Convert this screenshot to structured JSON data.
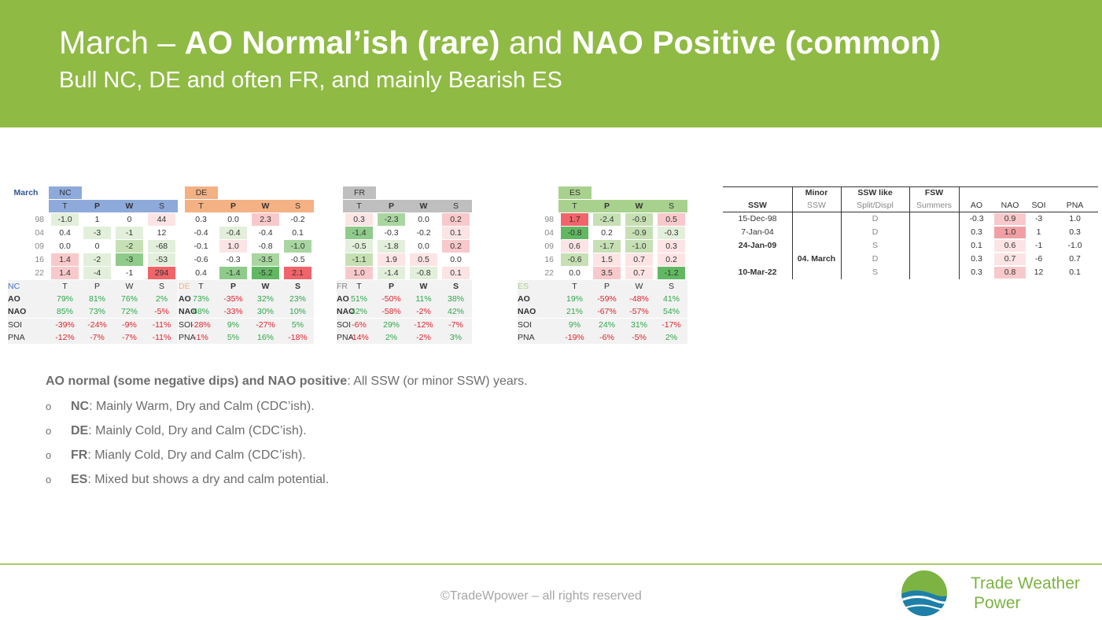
{
  "header": {
    "title_a": "March – ",
    "title_b": "AO Normal’ish (rare)",
    "title_c": " and ",
    "title_d": "NAO Positive (common)",
    "subtitle": "Bull NC, DE and often FR, and mainly Bearish ES"
  },
  "month_label": "March",
  "regions": [
    {
      "name": "NC",
      "color": "#8eaadb",
      "headers": [
        "T",
        "P",
        "W",
        "S"
      ],
      "years": [
        "98",
        "04",
        "09",
        "16",
        "22"
      ],
      "rows": [
        [
          "-1.0",
          "1",
          "0",
          "44"
        ],
        [
          "0.4",
          "-3",
          "-1",
          "12"
        ],
        [
          "0.0",
          "0",
          "-2",
          "-68"
        ],
        [
          "1.4",
          "-2",
          "-3",
          "-53"
        ],
        [
          "1.4",
          "-4",
          "-1",
          "294"
        ]
      ],
      "bg": [
        [
          "#e2efda",
          "#ffffff",
          "#ffffff",
          "#fce4e4"
        ],
        [
          "#ffffff",
          "#e2efda",
          "#e2efda",
          "#ffffff"
        ],
        [
          "#ffffff",
          "#ffffff",
          "#c6e0b4",
          "#e2efda"
        ],
        [
          "#f8c9cb",
          "#e2efda",
          "#8fcb8a",
          "#e2efda"
        ],
        [
          "#f8c9cb",
          "#e2efda",
          "#ffffff",
          "#f0646a"
        ]
      ],
      "corr_label": "NC",
      "corr_headers": [
        "T",
        "P",
        "W",
        "S"
      ],
      "corr": [
        {
          "label": "AO",
          "values": [
            "79%",
            "81%",
            "76%",
            "2%"
          ]
        },
        {
          "label": "NAO",
          "values": [
            "85%",
            "73%",
            "72%",
            "-5%"
          ]
        },
        {
          "label": "SOI",
          "values": [
            "-39%",
            "-24%",
            "-9%",
            "-11%"
          ]
        },
        {
          "label": "PNA",
          "values": [
            "-12%",
            "-7%",
            "-7%",
            "-11%"
          ]
        }
      ]
    },
    {
      "name": "DE",
      "color": "#f4b183",
      "headers": [
        "T",
        "P",
        "W",
        "S"
      ],
      "years": [
        "",
        "",
        "",
        "",
        ""
      ],
      "rows": [
        [
          "0.3",
          "0.0",
          "2.3",
          "-0.2"
        ],
        [
          "-0.4",
          "-0.4",
          "-0.4",
          "0.1"
        ],
        [
          "-0.1",
          "1.0",
          "-0.8",
          "-1.0"
        ],
        [
          "-0.6",
          "-0.3",
          "-3.5",
          "-0.5"
        ],
        [
          "0.4",
          "-1.4",
          "-5.2",
          "2.1"
        ]
      ],
      "bg": [
        [
          "#ffffff",
          "#ffffff",
          "#f8c9cb",
          "#ffffff"
        ],
        [
          "#ffffff",
          "#e2efda",
          "#ffffff",
          "#ffffff"
        ],
        [
          "#ffffff",
          "#fce4e4",
          "#ffffff",
          "#a9d6a0"
        ],
        [
          "#ffffff",
          "#ffffff",
          "#a9d6a0",
          "#ffffff"
        ],
        [
          "#ffffff",
          "#8fcb8a",
          "#62b862",
          "#f0646a"
        ]
      ],
      "corr_label": "DE",
      "corr_headers": [
        "T",
        "P",
        "W",
        "S"
      ],
      "corr": [
        {
          "label": "AO",
          "values": [
            "73%",
            "-35%",
            "32%",
            "23%"
          ]
        },
        {
          "label": "NAO",
          "values": [
            "68%",
            "-33%",
            "30%",
            "10%"
          ]
        },
        {
          "label": "SOI",
          "values": [
            "-28%",
            "9%",
            "-27%",
            "5%"
          ]
        },
        {
          "label": "PNA",
          "values": [
            "-1%",
            "5%",
            "16%",
            "-18%"
          ]
        }
      ]
    },
    {
      "name": "FR",
      "color": "#bfbfbf",
      "headers": [
        "T",
        "P",
        "W",
        "S"
      ],
      "years": [
        "",
        "",
        "",
        "",
        ""
      ],
      "rows": [
        [
          "0.3",
          "-2.3",
          "0.0",
          "0.2"
        ],
        [
          "-1.4",
          "-0.3",
          "-0.2",
          "0.1"
        ],
        [
          "-0.5",
          "-1.8",
          "0.0",
          "0.2"
        ],
        [
          "-1.1",
          "1.9",
          "0.5",
          "0.0"
        ],
        [
          "1.0",
          "-1.4",
          "-0.8",
          "0.1"
        ]
      ],
      "bg": [
        [
          "#fce4e4",
          "#a9d6a0",
          "#ffffff",
          "#f8c9cb"
        ],
        [
          "#8fcb8a",
          "#ffffff",
          "#ffffff",
          "#fce4e4"
        ],
        [
          "#e2efda",
          "#e2efda",
          "#ffffff",
          "#f8c9cb"
        ],
        [
          "#c6e0b4",
          "#fce4e4",
          "#fce4e4",
          "#ffffff"
        ],
        [
          "#f8c9cb",
          "#e2efda",
          "#e2efda",
          "#fce4e4"
        ]
      ],
      "corr_label": "FR",
      "corr_headers": [
        "T",
        "P",
        "W",
        "S"
      ],
      "corr": [
        {
          "label": "AO",
          "values": [
            "51%",
            "-50%",
            "11%",
            "38%"
          ]
        },
        {
          "label": "NAO",
          "values": [
            "42%",
            "-58%",
            "-2%",
            "42%"
          ]
        },
        {
          "label": "SOI",
          "values": [
            "-6%",
            "29%",
            "-12%",
            "-7%"
          ]
        },
        {
          "label": "PNA",
          "values": [
            "-14%",
            "2%",
            "-2%",
            "3%"
          ]
        }
      ]
    },
    {
      "name": "ES",
      "color": "#a9d18e",
      "headers": [
        "T",
        "P",
        "W",
        "S"
      ],
      "years": [
        "98",
        "04",
        "09",
        "16",
        "22"
      ],
      "rows": [
        [
          "1.7",
          "-2.4",
          "-0.9",
          "0.5"
        ],
        [
          "-0.8",
          "0.2",
          "-0.9",
          "-0.3"
        ],
        [
          "0.6",
          "-1.7",
          "-1.0",
          "0.3"
        ],
        [
          "-0.6",
          "1.5",
          "0.7",
          "0.2"
        ],
        [
          "0.0",
          "3.5",
          "0.7",
          "-1.2"
        ]
      ],
      "bg": [
        [
          "#f0646a",
          "#c6e0b4",
          "#c6e0b4",
          "#f8c9cb"
        ],
        [
          "#62b862",
          "#ffffff",
          "#c6e0b4",
          "#e2efda"
        ],
        [
          "#fce4e4",
          "#c6e0b4",
          "#c6e0b4",
          "#fce4e4"
        ],
        [
          "#c6e0b4",
          "#fce4e4",
          "#fce4e4",
          "#fce4e4"
        ],
        [
          "#ffffff",
          "#f8c9cb",
          "#fce4e4",
          "#62b862"
        ]
      ],
      "corr_label": "ES",
      "corr_headers": [
        "T",
        "P",
        "W",
        "S"
      ],
      "corr": [
        {
          "label": "AO",
          "values": [
            "19%",
            "-59%",
            "-48%",
            "41%"
          ]
        },
        {
          "label": "NAO",
          "values": [
            "21%",
            "-67%",
            "-57%",
            "54%"
          ]
        },
        {
          "label": "SOI",
          "values": [
            "9%",
            "24%",
            "31%",
            "-17%"
          ]
        },
        {
          "label": "PNA",
          "values": [
            "-19%",
            "-6%",
            "-5%",
            "2%"
          ]
        }
      ]
    }
  ],
  "ssw_table": {
    "top_headers": [
      "Minor",
      "SSW like",
      "FSW"
    ],
    "headers": [
      "SSW",
      "SSW",
      "Split/Displ",
      "Summers",
      "AO",
      "NAO",
      "SOI",
      "PNA"
    ],
    "rows": [
      {
        "date": "15-Dec-98",
        "minor": "",
        "type": "D",
        "fsw": "",
        "ao": "-0.3",
        "nao": "0.9",
        "soi": "-3",
        "pna": "1.0",
        "bold": false
      },
      {
        "date": "7-Jan-04",
        "minor": "",
        "type": "D",
        "fsw": "",
        "ao": "0.3",
        "nao": "1.0",
        "soi": "1",
        "pna": "0.3",
        "bold": false
      },
      {
        "date": "24-Jan-09",
        "minor": "",
        "type": "S",
        "fsw": "",
        "ao": "0.1",
        "nao": "0.6",
        "soi": "-1",
        "pna": "-1.0",
        "bold": true
      },
      {
        "date": "",
        "minor": "04. March",
        "type": "D",
        "fsw": "",
        "ao": "0.3",
        "nao": "0.7",
        "soi": "-6",
        "pna": "0.7",
        "bold": false
      },
      {
        "date": "10-Mar-22",
        "minor": "",
        "type": "S",
        "fsw": "",
        "ao": "0.3",
        "nao": "0.8",
        "soi": "12",
        "pna": "0.1",
        "bold": true
      }
    ],
    "nao_bg": [
      "#f8c9cb",
      "#f0a0a4",
      "#fce4e4",
      "#fce4e4",
      "#f8c9cb"
    ]
  },
  "bullets": {
    "lead_bold": "AO normal (some negative dips) and NAO positive",
    "lead_rest": ": All SSW (or minor SSW) years.",
    "bullet_glyph": "o",
    "items": [
      {
        "key": "NC",
        "text": ": Mainly Warm, Dry and Calm (CDC’ish)."
      },
      {
        "key": "DE",
        "text": ": Mainly Cold, Dry and Calm (CDC’ish)."
      },
      {
        "key": "FR",
        "text": ": Mianly Cold, Dry and Calm (CDC’ish)."
      },
      {
        "key": "ES",
        "text": ": Mixed but shows a dry and calm potential."
      }
    ]
  },
  "footer": {
    "copyright": "©TradeWpower – all rights reserved",
    "brand_line1": "Trade Weather",
    "brand_line2": "Power"
  }
}
